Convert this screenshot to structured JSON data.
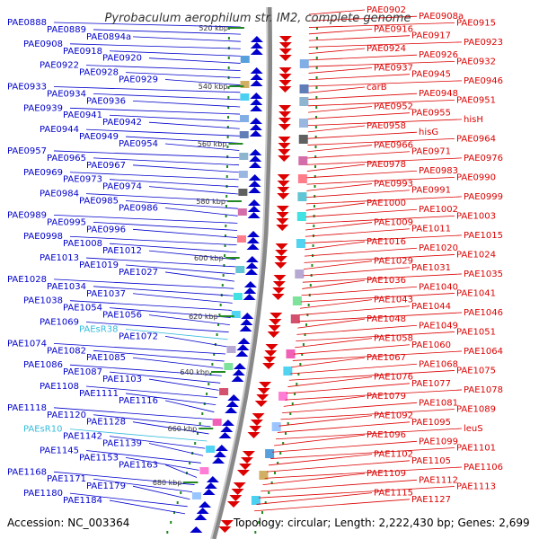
{
  "title": "Pyrobaculum aerophilum str. IM2, complete genome",
  "footer": {
    "accession": "Accession: NC_003364",
    "summary": "Topology: circular; Length: 2,222,430 bp; Genes: 2,699"
  },
  "colors": {
    "plus_strand": "#0000cc",
    "minus_strand": "#dd0000",
    "rna": "#33bbdd",
    "backbone": "#888888",
    "tick": "#228822"
  },
  "scale_labels": [
    "520 kbp",
    "540 kbp",
    "560 kbp",
    "580 kbp",
    "600 kbp",
    "620 kbp",
    "640 kbp",
    "660 kbp",
    "680 kbp"
  ],
  "left_labels": [
    "PAE0888",
    "PAE0889",
    "PAE0894a",
    "PAE0908",
    "PAE0918",
    "PAE0920",
    "PAE0922",
    "PAE0928",
    "PAE0929",
    "PAE0933",
    "PAE0934",
    "PAE0936",
    "PAE0939",
    "PAE0941",
    "PAE0942",
    "PAE0944",
    "PAE0949",
    "PAE0954",
    "PAE0957",
    "PAE0965",
    "PAE0967",
    "PAE0969",
    "PAE0973",
    "PAE0974",
    "PAE0984",
    "PAE0985",
    "PAE0986",
    "PAE0989",
    "PAE0995",
    "PAE0996",
    "PAE0998",
    "PAE1008",
    "PAE1012",
    "PAE1013",
    "PAE1019",
    "PAE1027",
    "PAE1028",
    "PAE1034",
    "PAE1037",
    "PAE1038",
    "PAE1054",
    "PAE1056",
    "PAE1069",
    "PAEsR38",
    "PAE1072",
    "PAE1074",
    "PAE1082",
    "PAE1085",
    "PAE1086",
    "PAE1087",
    "PAE1103",
    "PAE1108",
    "PAE1111",
    "PAE1116",
    "PAE1118",
    "PAE1120",
    "PAE1128",
    "PAEsR10",
    "PAE1142",
    "PAE1139",
    "PAE1145",
    "PAE1153",
    "PAE1163",
    "PAE1168",
    "PAE1171",
    "PAE1179",
    "PAE1180",
    "PAE1184"
  ],
  "right_labels": [
    "PAE0902",
    "PAE0908a",
    "PAE0915",
    "PAE0916",
    "PAE0917",
    "PAE0923",
    "PAE0924",
    "PAE0926",
    "PAE0932",
    "PAE0937",
    "PAE0945",
    "PAE0946",
    "carB",
    "PAE0948",
    "PAE0951",
    "PAE0952",
    "PAE0955",
    "hisH",
    "PAE0958",
    "hisG",
    "PAE0964",
    "PAE0966",
    "PAE0971",
    "PAE0976",
    "PAE0978",
    "PAE0983",
    "PAE0990",
    "PAE0993",
    "PAE0991",
    "PAE0999",
    "PAE1000",
    "PAE1002",
    "PAE1003",
    "PAE1009",
    "PAE1011",
    "PAE1015",
    "PAE1016",
    "PAE1020",
    "PAE1024",
    "PAE1029",
    "PAE1031",
    "PAE1035",
    "PAE1036",
    "PAE1040",
    "PAE1041",
    "PAE1043",
    "PAE1044",
    "PAE1046",
    "PAE1048",
    "PAE1049",
    "PAE1051",
    "PAE1058",
    "PAE1060",
    "PAE1064",
    "PAE1067",
    "PAE1068",
    "PAE1075",
    "PAE1076",
    "PAE1077",
    "PAE1078",
    "PAE1079",
    "PAE1081",
    "PAE1089",
    "PAE1092",
    "PAE1095",
    "leuS",
    "PAE1096",
    "PAE1099",
    "PAE1101",
    "PAE1102",
    "PAE1105",
    "PAE1106",
    "PAE1109",
    "PAE1112",
    "PAE1113",
    "PAE1115",
    "PAE1127"
  ]
}
